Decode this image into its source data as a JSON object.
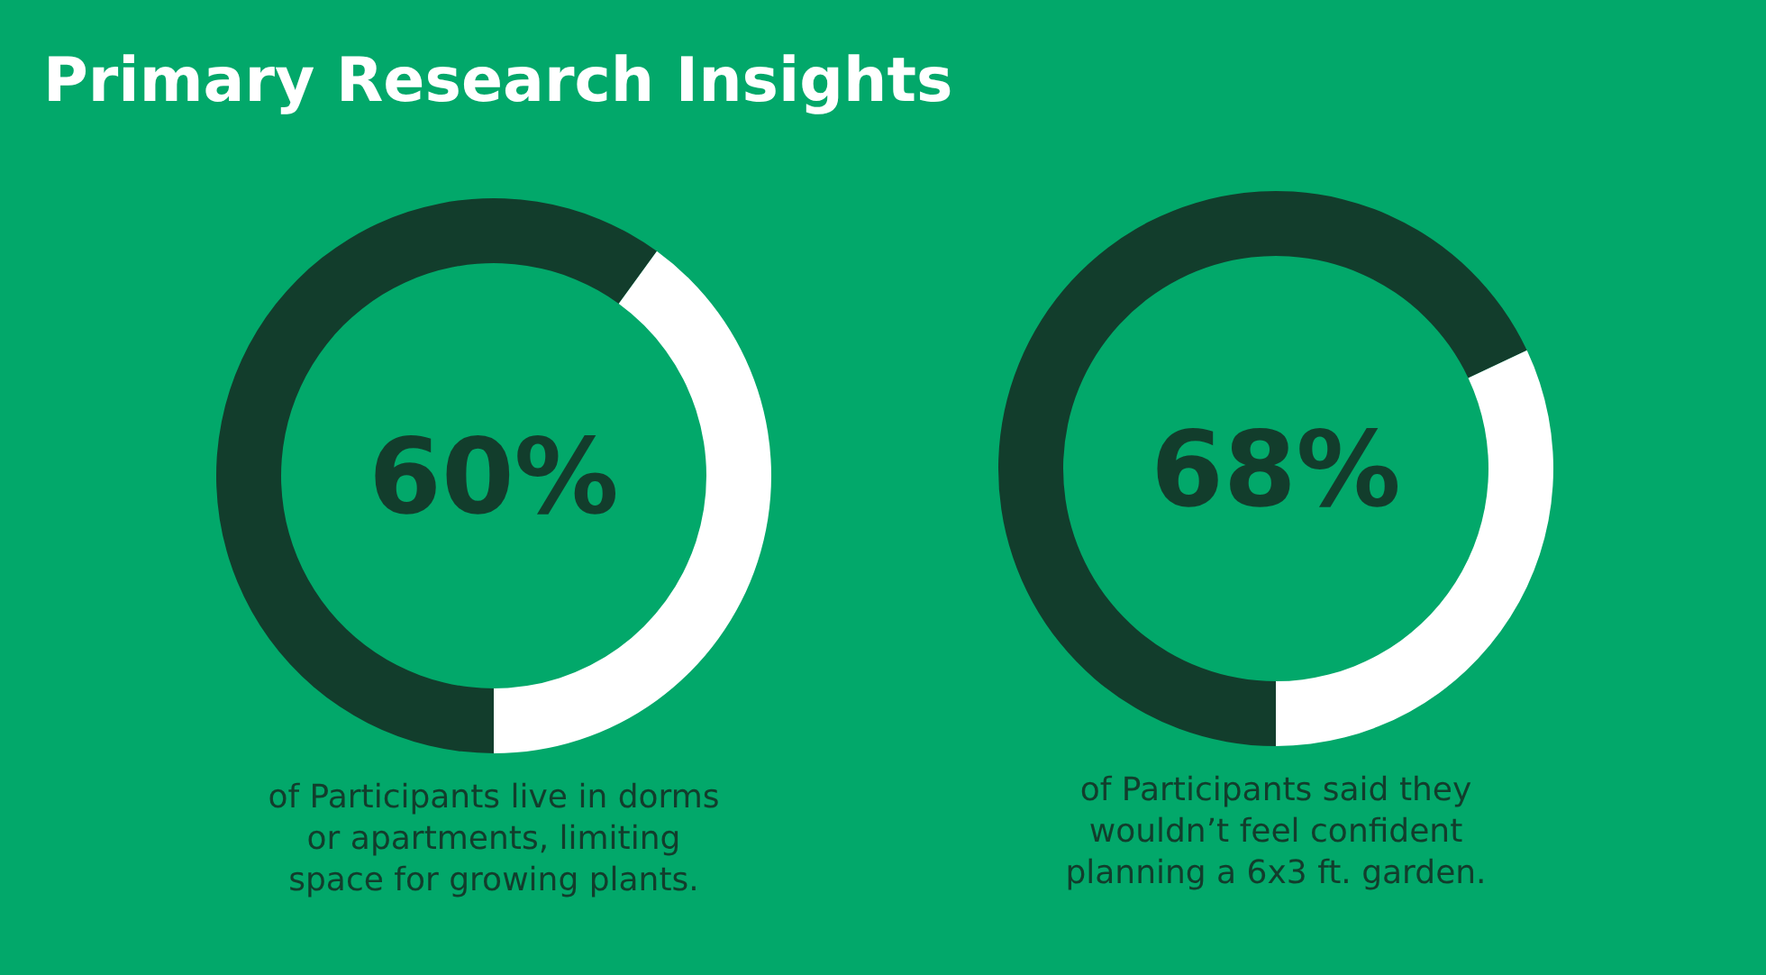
{
  "chart_data": [
    {
      "type": "donut",
      "title": "Primary Research Insights",
      "categories": [
        null,
        null
      ],
      "values": [
        60,
        40
      ],
      "colors": [
        "#123d2c",
        "#ffffff"
      ],
      "value_labels": [
        "60%",
        null
      ],
      "annotations": [
        "of Participants live in dorms",
        "or apartments, limiting",
        "space for growing plants."
      ]
    },
    {
      "type": "donut",
      "categories": [
        null,
        null
      ],
      "values": [
        68,
        32
      ],
      "colors": [
        "#123d2c",
        "#ffffff"
      ],
      "value_labels": [
        "68%",
        null
      ],
      "annotations": [
        "of Participants said they",
        "wouldn’t feel confident",
        "planning a 6x3 ft. garden."
      ]
    }
  ]
}
